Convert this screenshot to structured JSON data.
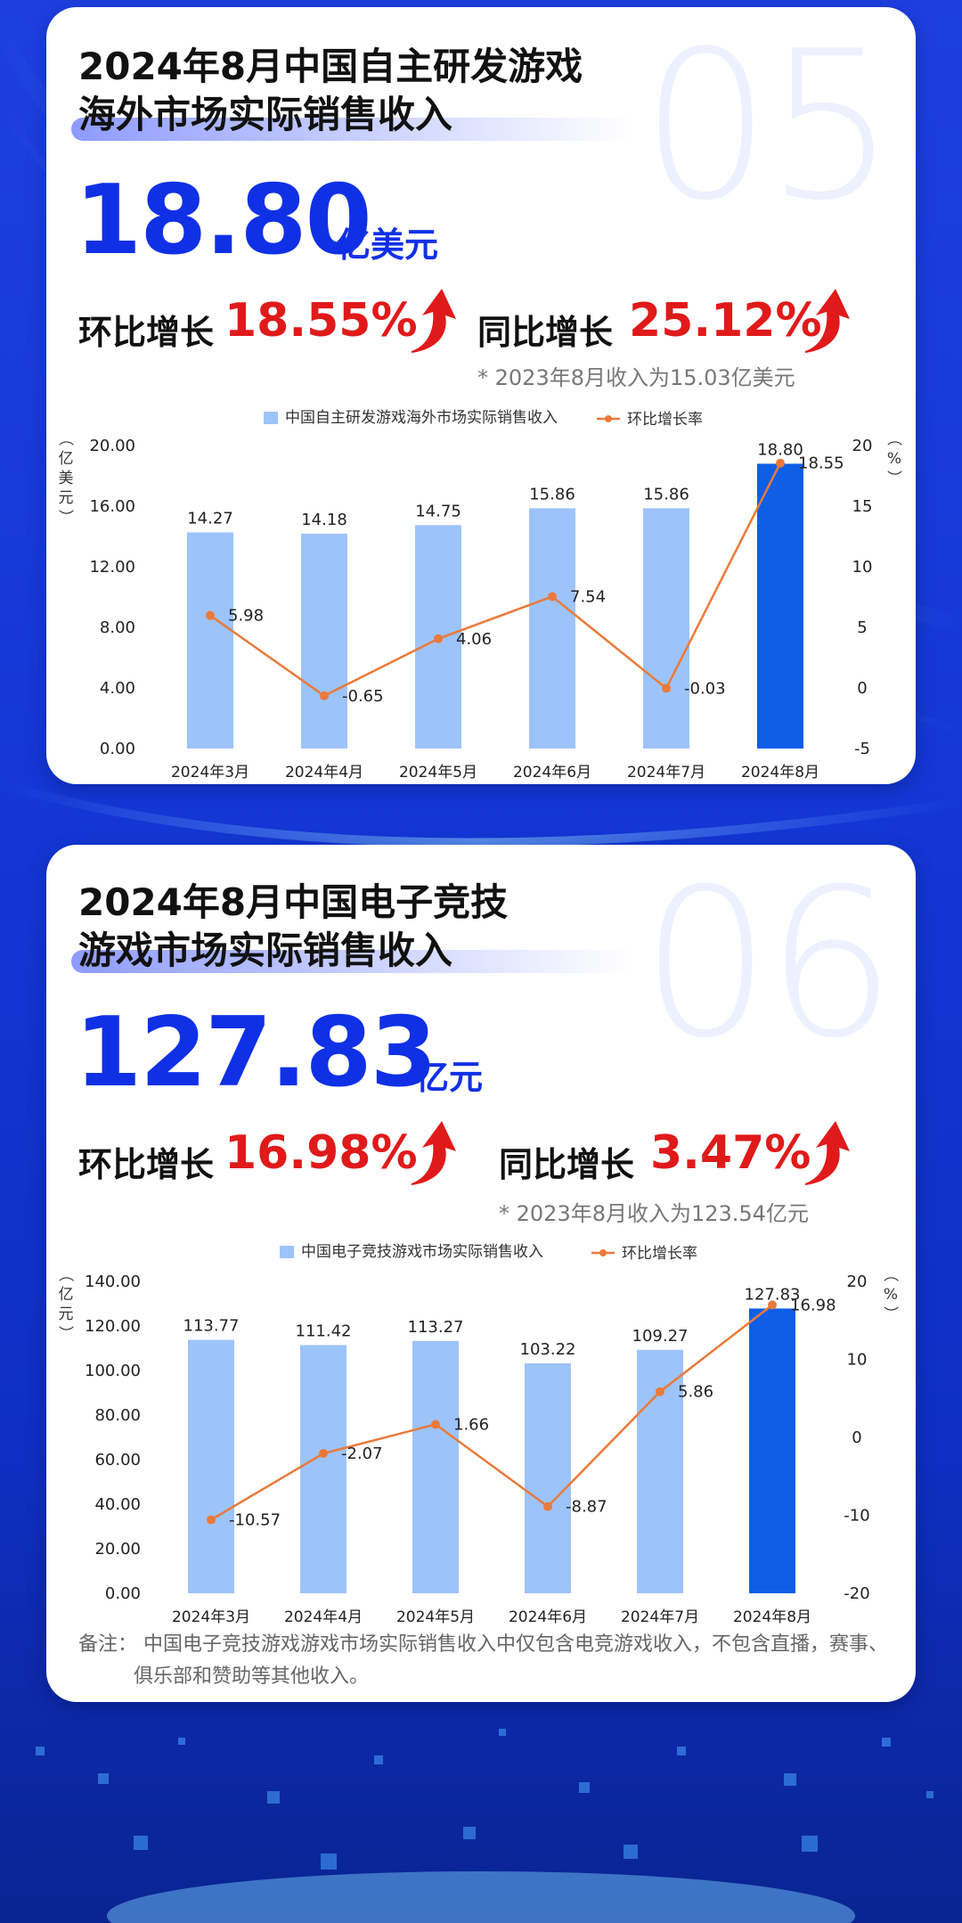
{
  "card1": {
    "number": "05",
    "title_line1": "2024年8月中国自主研发游戏",
    "title_line2": "海外市场实际销售收入",
    "value": "18.80",
    "unit": "亿美元",
    "mom_label": "环比增长",
    "mom_value": "18.55%",
    "yoy_label": "同比增长",
    "yoy_value": "25.12%",
    "note": "* 2023年8月收入为15.03亿美元"
  },
  "card2": {
    "number": "06",
    "title_line1": "2024年8月中国电子竞技",
    "title_line2": "游戏市场实际销售收入",
    "value": "127.83",
    "unit": "亿元",
    "mom_label": "环比增长",
    "mom_value": "16.98%",
    "yoy_label": "同比增长",
    "yoy_value": "3.47%",
    "note": "* 2023年8月收入为123.54亿元",
    "footnote_line1": "备注：  中国电子竞技游戏游戏市场实际销售收入中仅包含电竞游戏收入，不包含直播，赛事、",
    "footnote_line2": "俱乐部和赞助等其他收入。"
  },
  "colors": {
    "bar": "#9dc3fb",
    "bar_highlight": "#0f5ee6",
    "line": "#ea7a3a",
    "accent": "#1030e6",
    "growth": "#e01a1a"
  },
  "chart_data": [
    {
      "type": "bar",
      "categories": [
        "2024年3月",
        "2024年4月",
        "2024年5月",
        "2024年6月",
        "2024年7月",
        "2024年8月"
      ],
      "series": [
        {
          "name": "中国自主研发游戏海外市场实际销售收入",
          "type": "bar",
          "axis": "left",
          "values": [
            14.27,
            14.18,
            14.75,
            15.86,
            15.86,
            18.8
          ]
        },
        {
          "name": "环比增长率",
          "type": "line",
          "axis": "right",
          "values": [
            5.98,
            -0.65,
            4.06,
            7.54,
            -0.03,
            18.55
          ]
        }
      ],
      "left_axis": {
        "label": "（亿美元）",
        "min": 0,
        "max": 20,
        "ticks": [
          "0.00",
          "4.00",
          "8.00",
          "12.00",
          "16.00",
          "20.00"
        ]
      },
      "right_axis": {
        "label": "（%）",
        "min": -5,
        "max": 20,
        "ticks": [
          "-5",
          "0",
          "5",
          "10",
          "15",
          "20"
        ]
      },
      "legend_position": "top-center",
      "grid": false
    },
    {
      "type": "bar",
      "categories": [
        "2024年3月",
        "2024年4月",
        "2024年5月",
        "2024年6月",
        "2024年7月",
        "2024年8月"
      ],
      "series": [
        {
          "name": "中国电子竞技游戏市场实际销售收入",
          "type": "bar",
          "axis": "left",
          "values": [
            113.77,
            111.42,
            113.27,
            103.22,
            109.27,
            127.83
          ]
        },
        {
          "name": "环比增长率",
          "type": "line",
          "axis": "right",
          "values": [
            -10.57,
            -2.07,
            1.66,
            -8.87,
            5.86,
            16.98
          ]
        }
      ],
      "left_axis": {
        "label": "（亿元）",
        "min": 0,
        "max": 140,
        "ticks": [
          "0.00",
          "20.00",
          "40.00",
          "60.00",
          "80.00",
          "100.00",
          "120.00",
          "140.00"
        ]
      },
      "right_axis": {
        "label": "（%）",
        "min": -20,
        "max": 20,
        "ticks": [
          "-20",
          "-10",
          "0",
          "10",
          "20"
        ]
      },
      "legend_position": "top-center",
      "grid": false
    }
  ]
}
